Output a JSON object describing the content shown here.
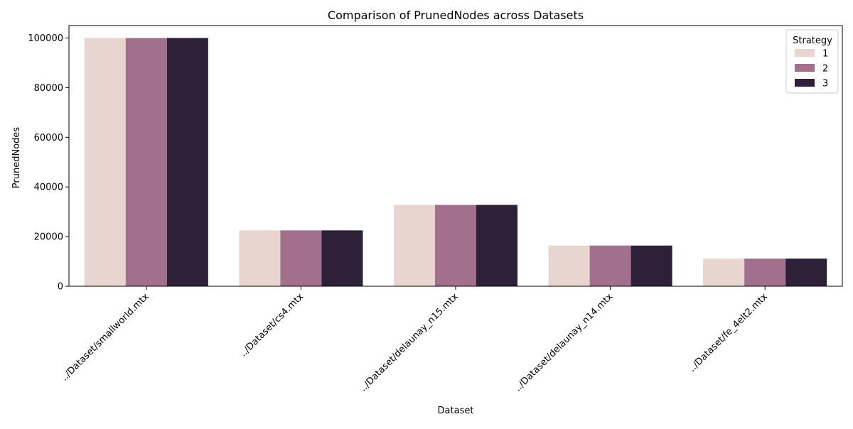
{
  "chart_data": {
    "type": "bar",
    "title": "Comparison of PrunedNodes across Datasets",
    "xlabel": "Dataset",
    "ylabel": "PrunedNodes",
    "categories": [
      "../Dataset/smallworld.mtx",
      "../Dataset/cs4.mtx",
      "../Dataset/delaunay_n15.mtx",
      "../Dataset/delaunay_n14.mtx",
      "../Dataset/fe_4elt2.mtx"
    ],
    "series": [
      {
        "name": "1",
        "color": "#e8d5d0",
        "values": [
          100000,
          22500,
          32768,
          16384,
          11143
        ]
      },
      {
        "name": "2",
        "color": "#a2708c",
        "values": [
          100000,
          22500,
          32768,
          16384,
          11143
        ]
      },
      {
        "name": "3",
        "color": "#2d2139",
        "values": [
          100000,
          22500,
          32768,
          16384,
          11143
        ]
      }
    ],
    "ylim": [
      0,
      105000
    ],
    "yticks": [
      0,
      20000,
      40000,
      60000,
      80000,
      100000
    ],
    "legend": {
      "title": "Strategy",
      "placement": "top-right"
    },
    "grid": false
  }
}
